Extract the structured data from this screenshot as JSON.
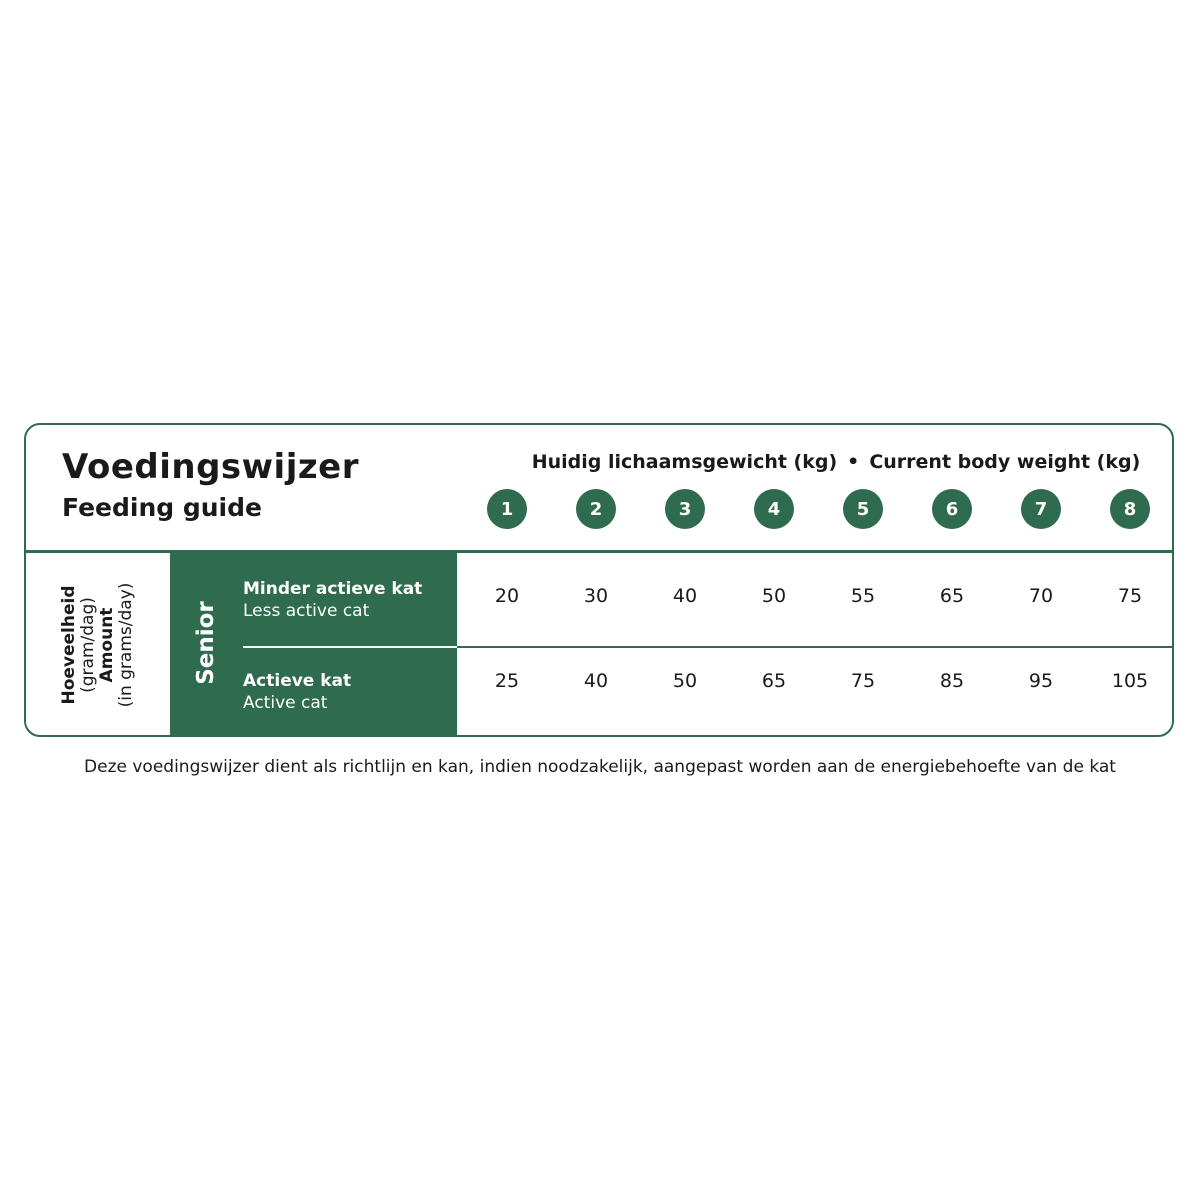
{
  "title": "Voedingswijzer",
  "subtitle": "Feeding guide",
  "weight_heading": {
    "nl": "Huidig lichaamsgewicht (kg)",
    "separator": "•",
    "en": "Current body weight (kg)"
  },
  "weights": [
    "1",
    "2",
    "3",
    "4",
    "5",
    "6",
    "7",
    "8"
  ],
  "amount_label": {
    "nl": "Hoeveelheid",
    "nl_unit": "(gram/dag)",
    "en": "Amount",
    "en_unit": "(in grams/day)"
  },
  "category": "Senior",
  "rows": [
    {
      "nl": "Minder actieve kat",
      "en": "Less active cat",
      "values": [
        "20",
        "30",
        "40",
        "50",
        "55",
        "65",
        "70",
        "75"
      ]
    },
    {
      "nl": "Actieve kat",
      "en": "Active cat",
      "values": [
        "25",
        "40",
        "50",
        "65",
        "75",
        "85",
        "95",
        "105"
      ]
    }
  ],
  "note": "Deze voedingswijzer dient als richtlijn en kan, indien noodzakelijk, aangepast worden aan de energiebehoefte van de kat",
  "colors": {
    "accent": "#2e6b4f"
  }
}
